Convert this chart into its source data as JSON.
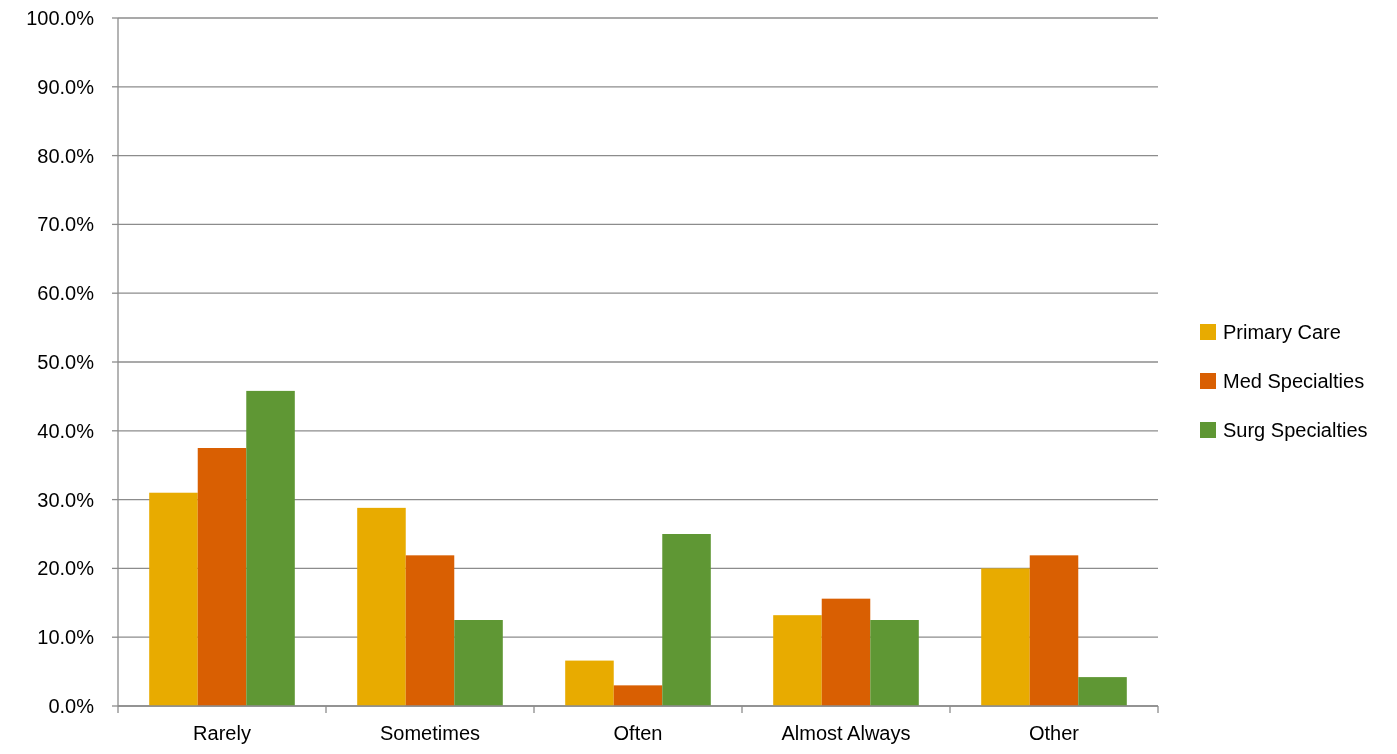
{
  "chart_data": {
    "type": "bar",
    "categories": [
      "Rarely",
      "Sometimes",
      "Often",
      "Almost Always",
      "Other"
    ],
    "series": [
      {
        "name": "Primary Care",
        "color": "#e8ab00",
        "values": [
          31.0,
          28.8,
          6.6,
          13.2,
          20.0
        ]
      },
      {
        "name": "Med Specialties",
        "color": "#d95f02",
        "values": [
          37.5,
          21.9,
          3.0,
          15.6,
          21.9
        ]
      },
      {
        "name": "Surg Specialties",
        "color": "#5f9734",
        "values": [
          45.8,
          12.5,
          25.0,
          12.5,
          4.2
        ]
      }
    ],
    "ylim": [
      0,
      100
    ],
    "yticks": [
      {
        "value": 0,
        "label": "0.0%"
      },
      {
        "value": 10,
        "label": "10.0%"
      },
      {
        "value": 20,
        "label": "20.0%"
      },
      {
        "value": 30,
        "label": "30.0%"
      },
      {
        "value": 40,
        "label": "40.0%"
      },
      {
        "value": 50,
        "label": "50.0%"
      },
      {
        "value": 60,
        "label": "60.0%"
      },
      {
        "value": 70,
        "label": "70.0%"
      },
      {
        "value": 80,
        "label": "80.0%"
      },
      {
        "value": 90,
        "label": "90.0%"
      },
      {
        "value": 100,
        "label": "100.0%"
      }
    ],
    "grid": "y",
    "legend": "right"
  }
}
